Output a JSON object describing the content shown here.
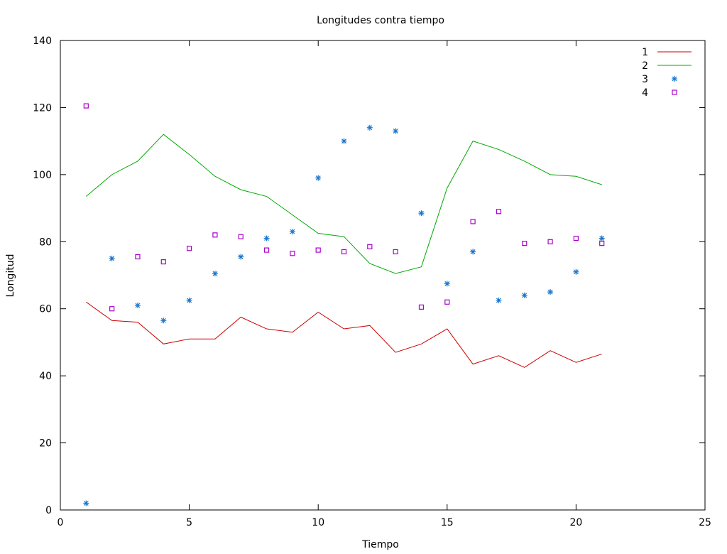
{
  "chart_data": {
    "type": "line",
    "title": "Longitudes contra tiempo",
    "xlabel": "Tiempo",
    "ylabel": "Longitud",
    "xlim": [
      0,
      25
    ],
    "ylim": [
      0,
      140
    ],
    "xticks": [
      0,
      5,
      10,
      15,
      20,
      25
    ],
    "yticks": [
      0,
      20,
      40,
      60,
      80,
      100,
      120,
      140
    ],
    "grid": false,
    "legend_position": "top-right",
    "x": [
      1,
      2,
      3,
      4,
      5,
      6,
      7,
      8,
      9,
      10,
      11,
      12,
      13,
      14,
      15,
      16,
      17,
      18,
      19,
      20,
      21
    ],
    "series": [
      {
        "name": "1",
        "style": "line",
        "color": "#cc0000",
        "values": [
          62,
          56.5,
          56,
          49.5,
          51,
          51,
          57.5,
          54,
          53,
          59,
          54,
          55,
          47,
          49.5,
          54,
          43.5,
          46,
          42.5,
          47.5,
          44,
          46.5
        ]
      },
      {
        "name": "2",
        "style": "line",
        "color": "#00aa00",
        "values": [
          93.5,
          100,
          104,
          112,
          106,
          99.5,
          95.5,
          93.5,
          88,
          82.5,
          81.5,
          73.5,
          70.5,
          72.5,
          96,
          110,
          107.5,
          104,
          100,
          99.5,
          97
        ]
      },
      {
        "name": "3",
        "style": "star",
        "color": "#1a75cc",
        "values": [
          2,
          75,
          61,
          56.5,
          62.5,
          70.5,
          75.5,
          81,
          83,
          99,
          110,
          114,
          113,
          88.5,
          67.5,
          77,
          62.5,
          64,
          65,
          71,
          81
        ]
      },
      {
        "name": "4",
        "style": "square",
        "color": "#aa00cc",
        "values": [
          120.5,
          60,
          75.5,
          74,
          78,
          82,
          81.5,
          77.5,
          76.5,
          77.5,
          77,
          78.5,
          77,
          60.5,
          62,
          86,
          89,
          79.5,
          80,
          81,
          79.5
        ]
      }
    ]
  }
}
